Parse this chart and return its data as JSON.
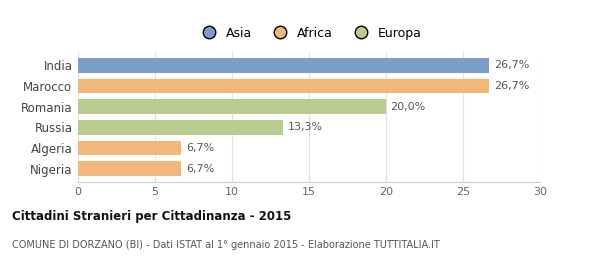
{
  "categories": [
    "India",
    "Marocco",
    "Romania",
    "Russia",
    "Algeria",
    "Nigeria"
  ],
  "values": [
    26.7,
    26.7,
    20.0,
    13.3,
    6.7,
    6.7
  ],
  "colors": [
    "#7b9dc9",
    "#f2b87a",
    "#b8cc90",
    "#b8cc90",
    "#f2b87a",
    "#f2b87a"
  ],
  "labels": [
    "26,7%",
    "26,7%",
    "20,0%",
    "13,3%",
    "6,7%",
    "6,7%"
  ],
  "legend": [
    {
      "label": "Asia",
      "color": "#7b9dc9"
    },
    {
      "label": "Africa",
      "color": "#f2b87a"
    },
    {
      "label": "Europa",
      "color": "#b8cc90"
    }
  ],
  "xlim": [
    0,
    30
  ],
  "xticks": [
    0,
    5,
    10,
    15,
    20,
    25,
    30
  ],
  "title": "Cittadini Stranieri per Cittadinanza - 2015",
  "subtitle": "COMUNE DI DORZANO (BI) - Dati ISTAT al 1° gennaio 2015 - Elaborazione TUTTITALIA.IT",
  "bg_color": "#ffffff",
  "bar_height": 0.72
}
